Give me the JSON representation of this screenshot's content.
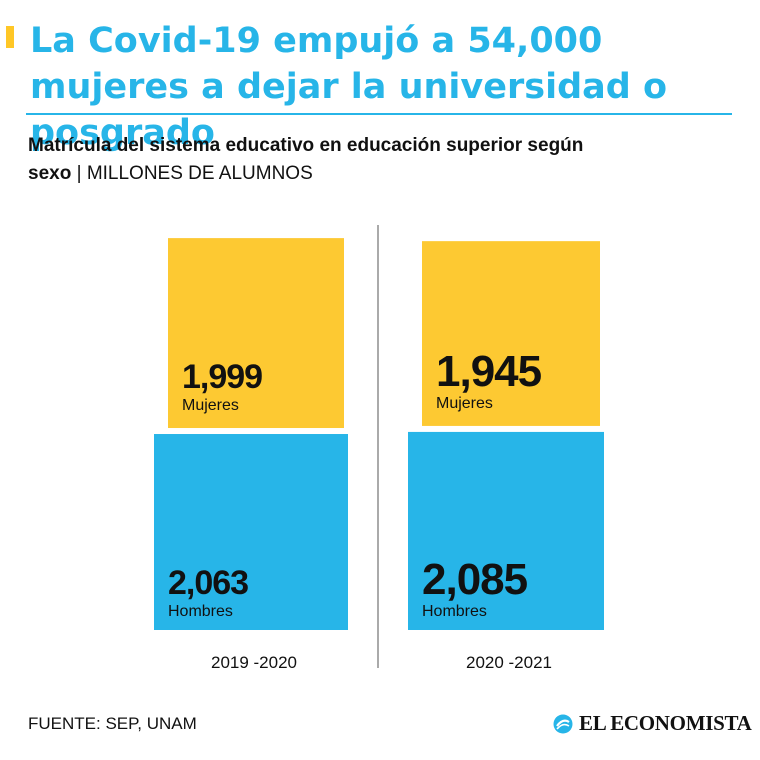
{
  "header": {
    "title": "La Covid-19 empujó a 54,000 mujeres a dejar la universidad o posgrado"
  },
  "subtitle": {
    "text_bold_1": "Matrícula del sistema educativo en educación superior según",
    "text_bold_2": "sexo",
    "separator": " | ",
    "unit": "MILLONES DE ALUMNOS"
  },
  "colors": {
    "mujeres": "#FDC932",
    "hombres": "#27B5E8",
    "title": "#27B5E8",
    "accent": "#FFC726"
  },
  "chart_data": {
    "type": "bar",
    "subtype": "stacked",
    "title": "Matrícula del sistema educativo en educación superior según sexo",
    "ylabel": "MILLONES DE ALUMNOS",
    "categories": [
      "2019 -2020",
      "2020 -2021"
    ],
    "series": [
      {
        "name": "Hombres",
        "values": [
          2.063,
          2.085
        ],
        "labels": [
          "2,063",
          "2,085"
        ]
      },
      {
        "name": "Mujeres",
        "values": [
          1.999,
          1.945
        ],
        "labels": [
          "1,999",
          "1,945"
        ]
      }
    ],
    "value_emphasis": [
      false,
      true
    ],
    "divider_between_categories": true
  },
  "footer": {
    "source": "FUENTE: SEP, UNAM",
    "brand": "EL ECONOMISTA",
    "brand_icon": "el-economista-logo-icon"
  }
}
